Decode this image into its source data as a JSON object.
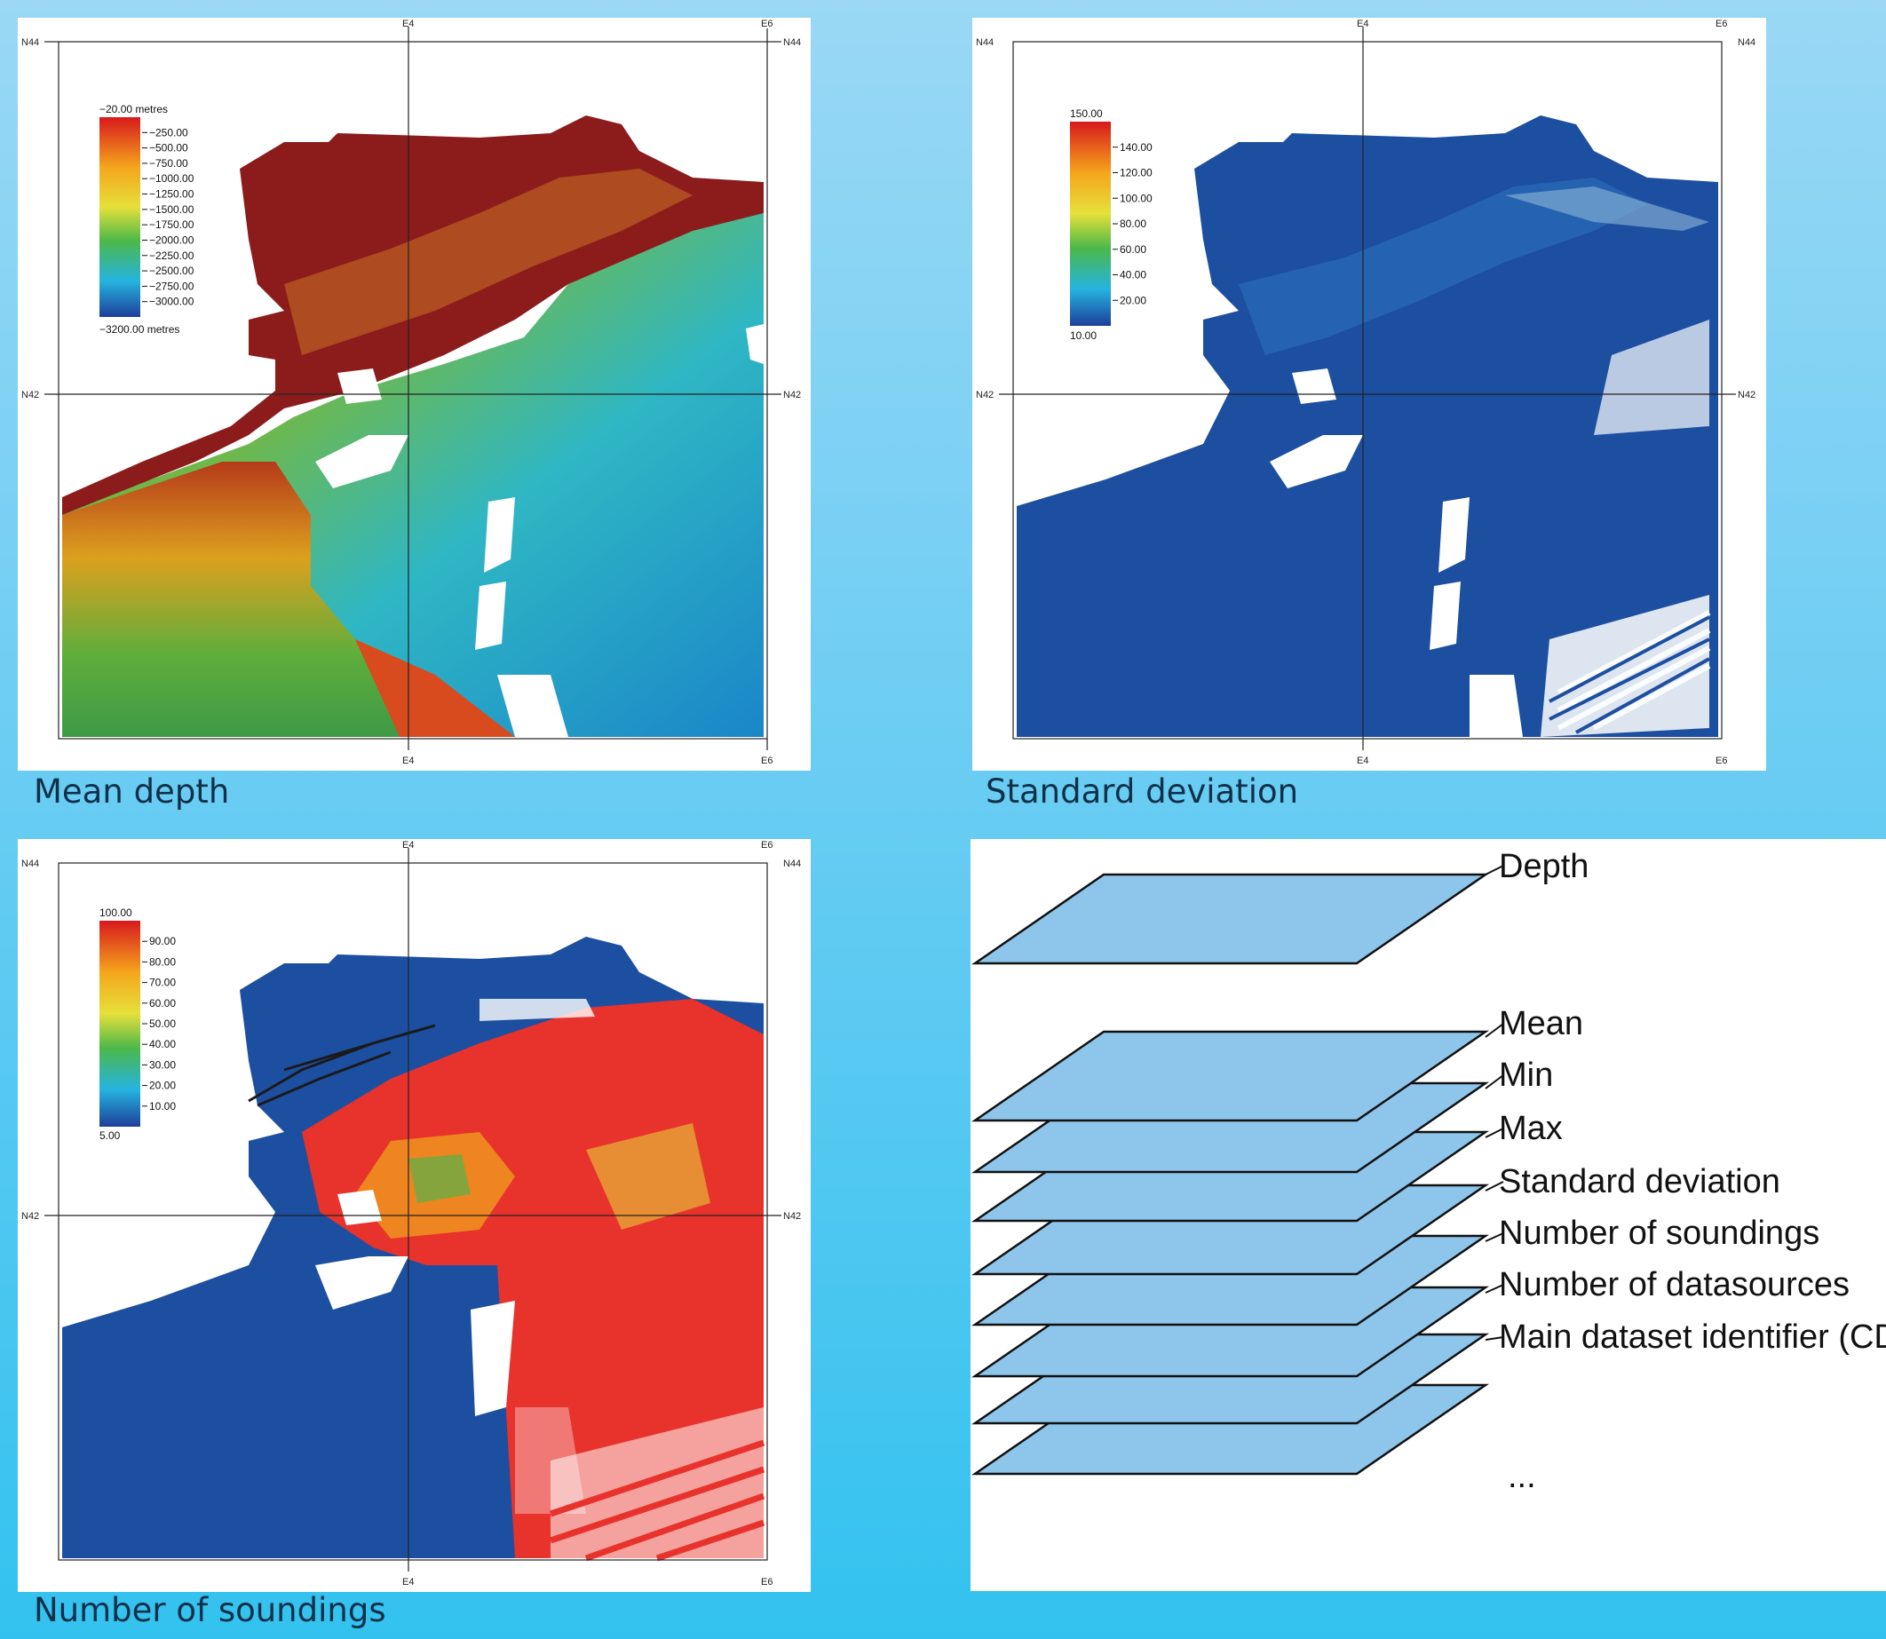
{
  "captions": {
    "mean_depth": "Mean depth",
    "std_dev": "Standard deviation",
    "num_soundings": "Number of soundings"
  },
  "map_frame": {
    "lon_labels": [
      "E4",
      "E6"
    ],
    "lat_labels": [
      "N44",
      "N42"
    ]
  },
  "depth_legend": {
    "top": "−20.00 metres",
    "ticks": [
      "−250.00",
      "−500.00",
      "−750.00",
      "−1000.00",
      "−1250.00",
      "−1500.00",
      "−1750.00",
      "−2000.00",
      "−2250.00",
      "−2500.00",
      "−2750.00",
      "−3000.00"
    ],
    "bottom": "−3200.00 metres"
  },
  "std_legend": {
    "top": "150.00",
    "ticks": [
      "140.00",
      "120.00",
      "100.00",
      "80.00",
      "60.00",
      "40.00",
      "20.00"
    ],
    "bottom": "10.00"
  },
  "sound_legend": {
    "top": "100.00",
    "ticks": [
      "90.00",
      "80.00",
      "70.00",
      "60.00",
      "50.00",
      "40.00",
      "30.00",
      "20.00",
      "10.00"
    ],
    "bottom": "5.00"
  },
  "layers": {
    "depth": "Depth",
    "items": [
      "Mean",
      "Min",
      "Max",
      "Standard deviation",
      "Number of soundings",
      "Number of datasources",
      "Main dataset identifier (CDI)"
    ],
    "ellipsis": "..."
  },
  "colors": {
    "depth_shelf": "#8c1c1c",
    "std_base": "#1d4fa0",
    "sound_red": "#e8322c",
    "layer_fill": "#8ec5ea"
  }
}
